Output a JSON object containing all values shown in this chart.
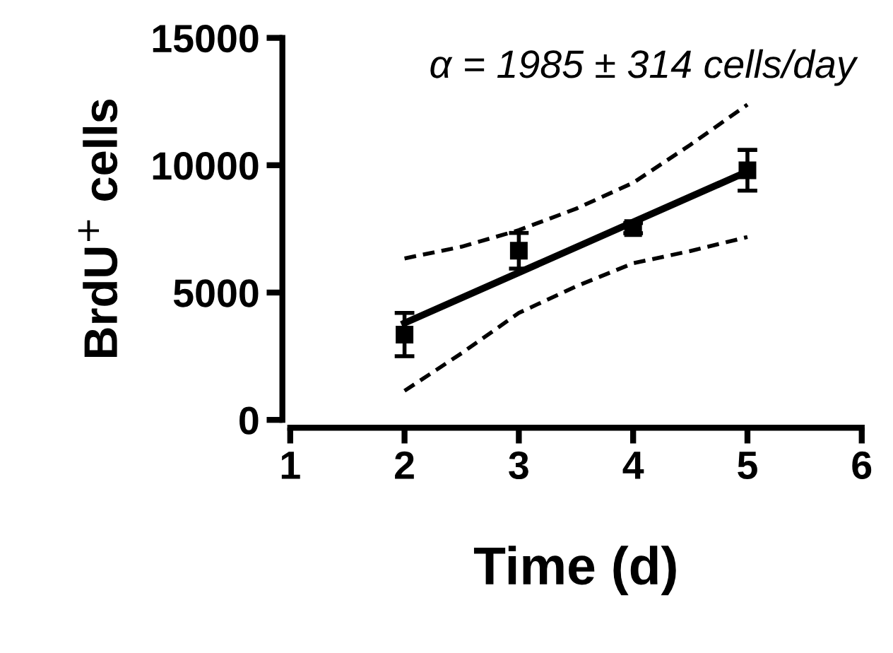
{
  "chart_data": {
    "type": "scatter",
    "xlabel": "Time (d)",
    "ylabel": "BrdU$^{+}$ cells",
    "annotations": [
      "α = 1985 ± 314 cells/day"
    ],
    "xlim": [
      1,
      6
    ],
    "xticks": [
      1,
      2,
      3,
      4,
      5,
      6
    ],
    "ylim": [
      0,
      15000
    ],
    "yticks": [
      0,
      5000,
      10000,
      15000
    ],
    "grid": false,
    "series": [
      {
        "color": "#000000",
        "marker": "square",
        "x": [
          2,
          3,
          4,
          5
        ],
        "values": [
          3350,
          6640,
          7530,
          9800
        ],
        "errors": [
          850,
          700,
          200,
          800
        ]
      },
      {
        "type": "line",
        "color": "#000000",
        "marker": "none",
        "line_style": "solid",
        "x": [
          2,
          5
        ],
        "values": [
          3800,
          9750
        ]
      },
      {
        "type": "line",
        "color": "#000000",
        "marker": "none",
        "line_style": "dashed",
        "x": [
          2,
          2.5,
          3,
          3.5,
          4,
          4.5,
          5
        ],
        "values": [
          6340,
          6800,
          7450,
          8290,
          9310,
          10800,
          12380
        ]
      },
      {
        "type": "line",
        "color": "#000000",
        "marker": "none",
        "line_style": "dashed",
        "x": [
          2,
          2.5,
          3,
          3.5,
          4,
          4.5,
          5
        ],
        "values": [
          1140,
          2620,
          4200,
          5240,
          6150,
          6630,
          7180
        ]
      }
    ]
  }
}
